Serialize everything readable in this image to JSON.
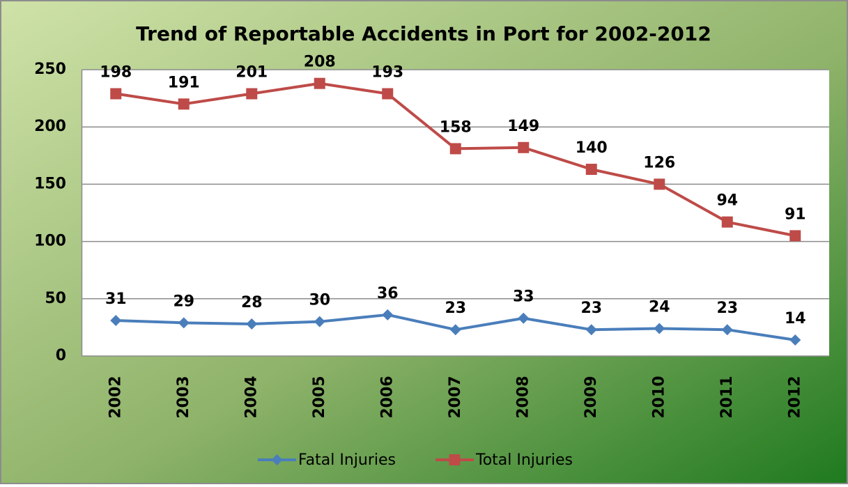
{
  "chart_data": {
    "type": "line",
    "stacked": true,
    "title": "Trend of Reportable Accidents in Port for 2002-2012",
    "categories": [
      "2002",
      "2003",
      "2004",
      "2005",
      "2006",
      "2007",
      "2008",
      "2009",
      "2010",
      "2011",
      "2012"
    ],
    "series": [
      {
        "name": "Fatal Injuries",
        "color": "#4a7ebb",
        "marker": "diamond",
        "values": [
          31,
          29,
          28,
          30,
          36,
          23,
          33,
          23,
          24,
          23,
          14
        ]
      },
      {
        "name": "Total Injuries",
        "color": "#be4b48",
        "marker": "square",
        "values": [
          198,
          191,
          201,
          208,
          193,
          158,
          149,
          140,
          126,
          94,
          91
        ]
      }
    ],
    "ylim": [
      0,
      250
    ],
    "yticks": [
      0,
      50,
      100,
      150,
      200,
      250
    ],
    "grid": true,
    "legend": "bottom"
  }
}
